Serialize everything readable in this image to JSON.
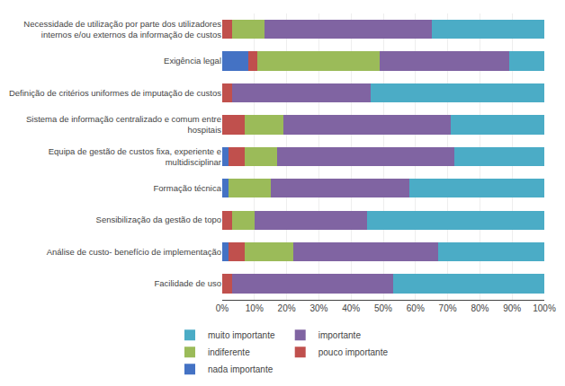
{
  "chart_data": {
    "type": "bar",
    "orientation": "horizontal",
    "stacked": true,
    "categories": [
      "Necessidade de utilização por parte dos utilizadores\ninternos e/ou externos da informação de custos",
      "Exigência legal",
      "Definição de critérios uniformes de imputação de custos",
      "Sistema de informação centralizado e comum entre\nhospitais",
      "Equipa de gestão de custos fixa, experiente e\nmultidisciplinar",
      "Formação técnica",
      "Sensibilização da gestão de topo",
      "Análise de custo- benefício de implementação",
      "Facilidade de uso"
    ],
    "series": [
      {
        "name": "nada importante",
        "color": "#4472C4",
        "values": [
          0,
          8,
          0,
          0,
          2,
          2,
          0,
          2,
          0
        ]
      },
      {
        "name": "pouco importante",
        "color": "#C0504D",
        "values": [
          3,
          3,
          3,
          7,
          5,
          0,
          3,
          5,
          3
        ]
      },
      {
        "name": "indiferente",
        "color": "#9BBB59",
        "values": [
          10,
          38,
          0,
          12,
          10,
          13,
          7,
          15,
          0
        ]
      },
      {
        "name": "importante",
        "color": "#8064A2",
        "values": [
          52,
          40,
          43,
          52,
          55,
          43,
          35,
          45,
          50
        ]
      },
      {
        "name": "muito importante",
        "color": "#4BACC6",
        "values": [
          35,
          11,
          54,
          29,
          28,
          42,
          55,
          33,
          47
        ]
      }
    ],
    "xlim": [
      0,
      100
    ],
    "xticks": [
      {
        "value": 0,
        "label": "0%"
      },
      {
        "value": 10,
        "label": "10%"
      },
      {
        "value": 20,
        "label": "20%"
      },
      {
        "value": 30,
        "label": "30%"
      },
      {
        "value": 40,
        "label": "40%"
      },
      {
        "value": 50,
        "label": "50%"
      },
      {
        "value": 60,
        "label": "60%"
      },
      {
        "value": 70,
        "label": "70%"
      },
      {
        "value": 80,
        "label": "80%"
      },
      {
        "value": 90,
        "label": "90%"
      },
      {
        "value": 100,
        "label": "100%"
      }
    ],
    "grid": true,
    "legend": "bottom"
  }
}
